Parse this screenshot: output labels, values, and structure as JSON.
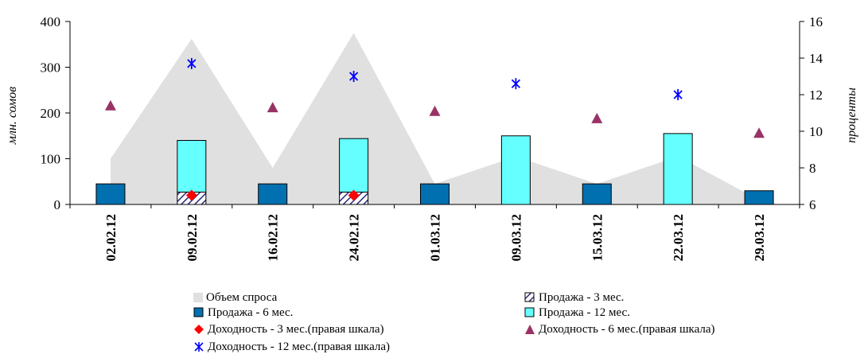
{
  "chart_data": {
    "type": "bar",
    "categories": [
      "02.02.12",
      "09.02.12",
      "16.02.12",
      "24.02.12",
      "01.03.12",
      "09.03.12",
      "15.03.12",
      "22.03.12",
      "29.03.12"
    ],
    "left_axis": {
      "label": "млн. сомов",
      "ylim": [
        0,
        400
      ],
      "ticks": [
        "0",
        "100",
        "200",
        "300",
        "400"
      ]
    },
    "right_axis": {
      "label": "проценты",
      "ylim": [
        6,
        16
      ],
      "ticks": [
        "6",
        "8",
        "10",
        "12",
        "14",
        "16"
      ]
    },
    "series": [
      {
        "name": "Объем спроса",
        "kind": "area",
        "axis": "left",
        "color": "#e0e0e0",
        "values": [
          100,
          362,
          80,
          375,
          45,
          105,
          45,
          105,
          10
        ]
      },
      {
        "name": "Продажа - 3 мес.",
        "kind": "stacked-bar",
        "axis": "left",
        "pattern": "hatch-navy",
        "values": [
          null,
          27,
          null,
          27,
          null,
          null,
          null,
          null,
          null
        ]
      },
      {
        "name": "Продажа - 6 мес.",
        "kind": "bar",
        "axis": "left",
        "color": "#0070b0",
        "values": [
          45,
          null,
          45,
          null,
          45,
          null,
          45,
          null,
          30
        ]
      },
      {
        "name": "Продажа - 12 мес.",
        "kind": "stacked-bar",
        "axis": "left",
        "color": "#66ffff",
        "values": [
          null,
          113,
          null,
          117,
          null,
          150,
          null,
          155,
          null
        ]
      },
      {
        "name": "Доходность - 3 мес.(правая шкала)",
        "kind": "marker",
        "marker": "diamond",
        "axis": "right",
        "color": "#ff0000",
        "values": [
          null,
          6.5,
          null,
          6.5,
          null,
          null,
          null,
          null,
          null
        ]
      },
      {
        "name": "Доходность - 6 мес.(правая шкала)",
        "kind": "marker",
        "marker": "triangle",
        "axis": "right",
        "color": "#993366",
        "values": [
          11.4,
          null,
          11.3,
          null,
          11.1,
          null,
          10.7,
          null,
          9.9
        ]
      },
      {
        "name": "Доходность - 12 мес.(правая шкала)",
        "kind": "marker",
        "marker": "asterisk",
        "axis": "right",
        "color": "#0000ff",
        "values": [
          null,
          13.7,
          null,
          13.0,
          null,
          12.6,
          null,
          12.0,
          null
        ]
      }
    ],
    "grid": false,
    "legend_position": "bottom"
  },
  "legend": {
    "items": [
      "Объем спроса",
      "Продажа - 3 мес.",
      "Продажа - 6 мес.",
      "Продажа - 12 мес.",
      "Доходность - 3 мес.(правая шкала)",
      "Доходность - 6 мес.(правая шкала)",
      "Доходность - 12 мес.(правая шкала)"
    ]
  }
}
